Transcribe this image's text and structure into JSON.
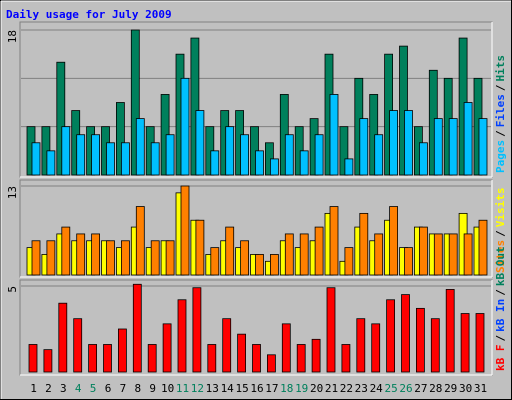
{
  "chart_data": [
    {
      "type": "bar",
      "title": "Daily usage for July 2009",
      "ylim": [
        0,
        18
      ],
      "yticks": [
        18
      ],
      "grid_lines": [
        6,
        12
      ],
      "legend": [
        {
          "text": "Pages",
          "color": "#00c0ff"
        },
        {
          "text": "Files",
          "color": "#0040ff"
        },
        {
          "text": "Hits",
          "color": "#00805c"
        }
      ],
      "separator": "/",
      "series": [
        {
          "name": "Hits",
          "color": "#00805c",
          "values": [
            6,
            6,
            14,
            8,
            6,
            6,
            9,
            18,
            6,
            10,
            15,
            17,
            6,
            8,
            8,
            6,
            4,
            10,
            6,
            7,
            15,
            6,
            12,
            10,
            15,
            16,
            6,
            13,
            12,
            17,
            12
          ]
        },
        {
          "name": "Pages",
          "color": "#00c0ff",
          "values": [
            4,
            3,
            6,
            5,
            5,
            4,
            4,
            7,
            4,
            5,
            12,
            8,
            3,
            6,
            5,
            3,
            2,
            5,
            3,
            5,
            10,
            2,
            7,
            5,
            8,
            8,
            4,
            7,
            7,
            9,
            7
          ]
        }
      ]
    },
    {
      "type": "bar",
      "ylim": [
        0,
        13
      ],
      "yticks": [
        13
      ],
      "legend": [
        {
          "text": "Sites",
          "color": "#ff8000"
        },
        {
          "text": "Visits",
          "color": "#ffff00"
        }
      ],
      "separator": "/",
      "series": [
        {
          "name": "Visits",
          "color": "#ffff00",
          "values": [
            4,
            3,
            6,
            5,
            5,
            5,
            4,
            7,
            4,
            5,
            12,
            8,
            3,
            5,
            4,
            3,
            2,
            5,
            4,
            5,
            9,
            2,
            7,
            5,
            8,
            4,
            7,
            6,
            6,
            9,
            7
          ]
        },
        {
          "name": "Sites",
          "color": "#ff8000",
          "values": [
            5,
            5,
            7,
            6,
            6,
            5,
            5,
            10,
            5,
            5,
            13,
            8,
            4,
            7,
            5,
            3,
            3,
            6,
            6,
            7,
            10,
            4,
            9,
            6,
            10,
            4,
            7,
            6,
            6,
            6,
            8
          ]
        }
      ]
    },
    {
      "type": "bar",
      "ylim": [
        0,
        5
      ],
      "yticks": [
        5
      ],
      "legend": [
        {
          "text": "kB F",
          "color": "#ff0000"
        },
        {
          "text": "kB In",
          "color": "#0040ff"
        },
        {
          "text": "kB Out",
          "color": "#00805c"
        }
      ],
      "separator": "/",
      "categories": [
        "1",
        "2",
        "3",
        "4",
        "5",
        "6",
        "7",
        "8",
        "9",
        "10",
        "11",
        "12",
        "13",
        "14",
        "15",
        "16",
        "17",
        "18",
        "19",
        "20",
        "21",
        "22",
        "23",
        "24",
        "25",
        "26",
        "27",
        "28",
        "29",
        "30",
        "31"
      ],
      "category_colors": [
        "#000000",
        "#000000",
        "#000000",
        "#00805c",
        "#00805c",
        "#000000",
        "#000000",
        "#000000",
        "#000000",
        "#000000",
        "#00805c",
        "#00805c",
        "#000000",
        "#000000",
        "#000000",
        "#000000",
        "#000000",
        "#00805c",
        "#00805c",
        "#000000",
        "#000000",
        "#000000",
        "#000000",
        "#000000",
        "#00805c",
        "#00805c",
        "#000000",
        "#000000",
        "#000000",
        "#000000",
        "#000000"
      ],
      "series": [
        {
          "name": "kB F",
          "color": "#ff0000",
          "values": [
            1.6,
            1.3,
            4.0,
            3.1,
            1.6,
            1.6,
            2.5,
            5.1,
            1.6,
            2.8,
            4.2,
            4.9,
            1.6,
            3.1,
            2.2,
            1.6,
            1.0,
            2.8,
            1.6,
            1.9,
            4.9,
            1.6,
            3.1,
            2.8,
            4.2,
            4.5,
            3.7,
            3.1,
            4.8,
            3.4,
            3.4
          ]
        }
      ]
    }
  ]
}
